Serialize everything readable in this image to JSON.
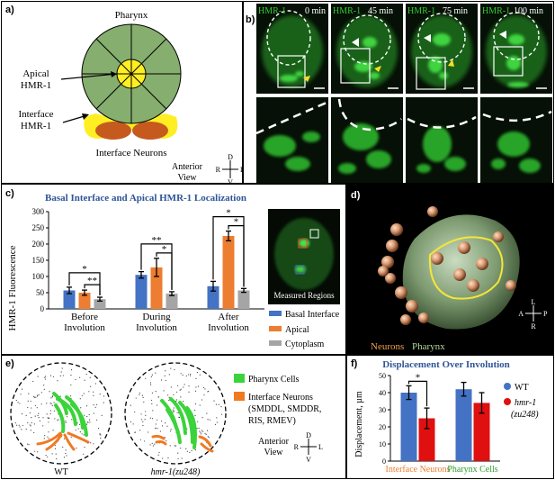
{
  "panel_a": {
    "label": "a)",
    "pharynx": "Pharynx",
    "apical_l1": "Apical",
    "apical_l2": "HMR-1",
    "interface_l1": "Interface",
    "interface_l2": "HMR-1",
    "neurons": "Interface Neurons",
    "view_l1": "Anterior",
    "view_l2": "View",
    "axis_d": "D",
    "axis_v": "V",
    "axis_r": "R",
    "axis_l": "L"
  },
  "panel_b": {
    "label": "b)",
    "frames": [
      {
        "channel": "HMR-1",
        "time": "0 min"
      },
      {
        "channel": "HMR-1",
        "time": "45 min"
      },
      {
        "channel": "HMR-1",
        "time": "75 min"
      },
      {
        "channel": "HMR-1",
        "time": "100 min"
      }
    ]
  },
  "panel_c": {
    "label": "c)",
    "chart_data": {
      "type": "bar",
      "title": "Basal Interface and Apical HMR-1 Localization",
      "ylabel": "HMR-1 Fluorescence",
      "ylim": [
        0,
        300
      ],
      "yticks": [
        0,
        50,
        100,
        150,
        200,
        250,
        300
      ],
      "categories": [
        "Before Involution",
        "During Involution",
        "After Involution"
      ],
      "category_lines": [
        [
          "Before",
          "Involution"
        ],
        [
          "During",
          "Involution"
        ],
        [
          "After",
          "Involution"
        ]
      ],
      "series": [
        {
          "name": "Basal Interface",
          "color": "#4472c4",
          "values": [
            57,
            105,
            70
          ],
          "errors": [
            10,
            10,
            15
          ]
        },
        {
          "name": "Apical",
          "color": "#ed7d31",
          "values": [
            50,
            128,
            225
          ],
          "errors": [
            8,
            28,
            15
          ]
        },
        {
          "name": "Cytoplasm",
          "color": "#a5a5a5",
          "values": [
            30,
            47,
            57
          ],
          "errors": [
            6,
            6,
            6
          ]
        }
      ],
      "significance": [
        {
          "category": 0,
          "from": 0,
          "to": 2,
          "mark": "*"
        },
        {
          "category": 0,
          "from": 1,
          "to": 2,
          "mark": "**"
        },
        {
          "category": 1,
          "from": 0,
          "to": 2,
          "mark": "**"
        },
        {
          "category": 1,
          "from": 1,
          "to": 2,
          "mark": "*"
        },
        {
          "category": 2,
          "from": 0,
          "to": 2,
          "mark": "*"
        },
        {
          "category": 2,
          "from": 1,
          "to": 2,
          "mark": "*"
        }
      ]
    },
    "inset_caption": "Measured Regions"
  },
  "panel_d": {
    "label": "d)",
    "neurons": "Neurons",
    "pharynx": "Pharynx",
    "axis_l": "L",
    "axis_r": "R",
    "axis_a": "A",
    "axis_p": "P"
  },
  "panel_e": {
    "label": "e)",
    "wt": "WT",
    "mutant": "hmr-1(zu248)",
    "legend_pharynx": "Pharynx Cells",
    "legend_neurons_l1": "Interface Neurons",
    "legend_neurons_l2": "(SMDDL, SMDDR,",
    "legend_neurons_l3": "RIS, RMEV)",
    "view_l1": "Anterior",
    "view_l2": "View",
    "axis_d": "D",
    "axis_v": "V",
    "axis_r": "R",
    "axis_l": "L"
  },
  "panel_f": {
    "label": "f)",
    "chart_data": {
      "type": "bar",
      "title": "Displacement Over Involution",
      "ylabel": "Displacement, µm",
      "ylim": [
        0,
        50
      ],
      "yticks": [
        0,
        10,
        20,
        30,
        40,
        50
      ],
      "categories": [
        "Interface Neurons",
        "Pharynx Cells"
      ],
      "category_colors": [
        "#ed7d31",
        "#2ca02c"
      ],
      "series": [
        {
          "name": "WT",
          "color": "#4472c4",
          "values": [
            40,
            42
          ],
          "errors": [
            4,
            4
          ]
        },
        {
          "name": "hmr-1 (zu248)",
          "color": "#e01010",
          "values": [
            25,
            34
          ],
          "errors": [
            6,
            6
          ]
        }
      ],
      "significance": [
        {
          "category": 0,
          "from": 0,
          "to": 1,
          "mark": "*"
        }
      ]
    },
    "legend_wt": "WT",
    "legend_mut_l1": "hmr-1",
    "legend_mut_l2": "(zu248)"
  }
}
